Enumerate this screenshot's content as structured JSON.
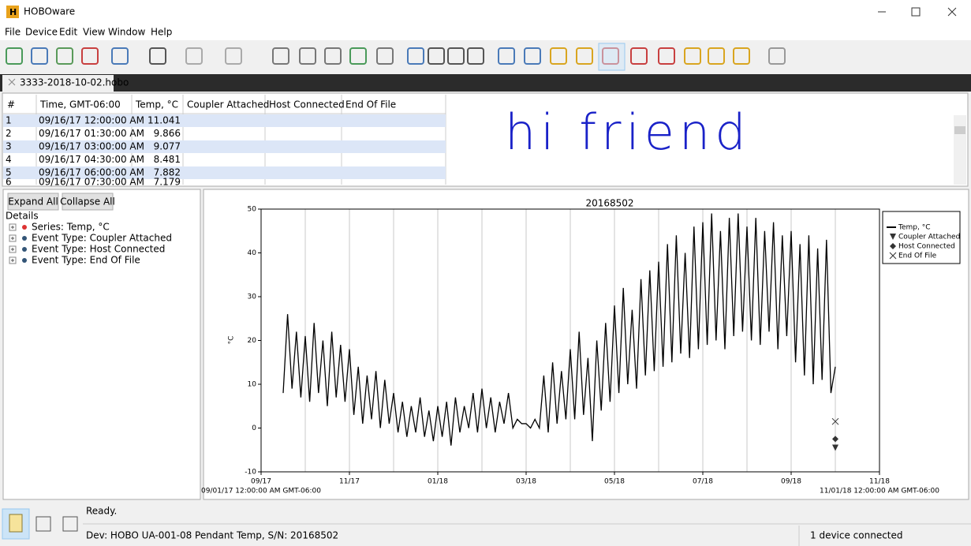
{
  "window": {
    "title": "HOBOware"
  },
  "menu": [
    "File",
    "Device",
    "Edit",
    "View",
    "Window",
    "Help"
  ],
  "tab": "3333-2018-10-02.hobo",
  "table": {
    "headers": [
      "#",
      "Time, GMT-06:00",
      "Temp, °C",
      "Coupler Attached",
      "Host Connected",
      "End Of File"
    ],
    "rows": [
      [
        1,
        "09/16/17 12:00:00 AM",
        11.041
      ],
      [
        2,
        "09/16/17 01:30:00 AM",
        9.866
      ],
      [
        3,
        "09/16/17 03:00:00 AM",
        9.077
      ],
      [
        4,
        "09/16/17 04:30:00 AM",
        8.481
      ],
      [
        5,
        "09/16/17 06:00:00 AM",
        7.882
      ],
      [
        6,
        "09/16/17 07:30:00 AM",
        7.179
      ]
    ]
  },
  "note": "hi friend",
  "panel": {
    "buttons": [
      "Expand All",
      "Collapse All"
    ],
    "tree_title": "Details",
    "tree": [
      "Series: Temp, °C",
      "Event Type: Coupler Attached",
      "Event Type: Host Connected",
      "Event Type: End Of File"
    ]
  },
  "status": {
    "message": "Ready.",
    "device": "Dev: HOBO UA-001-08 Pendant Temp, S/N: 20168502",
    "connected": "1 device connected"
  },
  "chart_data": {
    "type": "line",
    "title": "20168502",
    "y_label": "°C",
    "x_start_label": "09/01/17 12:00:00 AM GMT-06:00",
    "x_end_label": "11/01/18 12:00:00 AM GMT-06:00",
    "xlim": [
      0,
      14
    ],
    "xticks": [
      {
        "value": 0,
        "label": "09/17"
      },
      {
        "value": 2,
        "label": "11/17"
      },
      {
        "value": 4,
        "label": "01/18"
      },
      {
        "value": 6,
        "label": "03/18"
      },
      {
        "value": 8,
        "label": "05/18"
      },
      {
        "value": 10,
        "label": "07/18"
      },
      {
        "value": 12,
        "label": "09/18"
      },
      {
        "value": 14,
        "label": "11/18"
      }
    ],
    "xgrid": [
      1,
      3,
      5,
      7,
      9,
      11,
      13
    ],
    "ylim": [
      -10,
      50
    ],
    "yticks": [
      -10,
      0,
      10,
      20,
      30,
      40,
      50
    ],
    "legend": "right",
    "x": [
      0.5,
      0.6,
      0.7,
      0.8,
      0.9,
      1.0,
      1.1,
      1.2,
      1.3,
      1.4,
      1.5,
      1.6,
      1.7,
      1.8,
      1.9,
      2.0,
      2.1,
      2.2,
      2.3,
      2.4,
      2.5,
      2.6,
      2.7,
      2.8,
      2.9,
      3.0,
      3.1,
      3.2,
      3.3,
      3.4,
      3.5,
      3.6,
      3.7,
      3.8,
      3.9,
      4.0,
      4.1,
      4.2,
      4.3,
      4.4,
      4.5,
      4.6,
      4.7,
      4.8,
      4.9,
      5.0,
      5.1,
      5.2,
      5.3,
      5.4,
      5.5,
      5.6,
      5.7,
      5.8,
      5.9,
      6.0,
      6.1,
      6.2,
      6.3,
      6.4,
      6.5,
      6.6,
      6.7,
      6.8,
      6.9,
      7.0,
      7.1,
      7.2,
      7.3,
      7.4,
      7.5,
      7.6,
      7.7,
      7.8,
      7.9,
      8.0,
      8.1,
      8.2,
      8.3,
      8.4,
      8.5,
      8.6,
      8.7,
      8.8,
      8.9,
      9.0,
      9.1,
      9.2,
      9.3,
      9.4,
      9.5,
      9.6,
      9.7,
      9.8,
      9.9,
      10.0,
      10.1,
      10.2,
      10.3,
      10.4,
      10.5,
      10.6,
      10.7,
      10.8,
      10.9,
      11.0,
      11.1,
      11.2,
      11.3,
      11.4,
      11.5,
      11.6,
      11.7,
      11.8,
      11.9,
      12.0,
      12.1,
      12.2,
      12.3,
      12.4,
      12.5,
      12.6,
      12.7,
      12.8,
      12.9,
      13.0
    ],
    "series": [
      {
        "name": "Temp, °C",
        "marker": "line",
        "color": "#000000",
        "values": [
          8,
          26,
          9,
          22,
          7,
          21,
          6,
          24,
          8,
          20,
          5,
          22,
          7,
          19,
          6,
          18,
          3,
          14,
          1,
          12,
          2,
          13,
          0,
          11,
          1,
          8,
          -1,
          6,
          -2,
          5,
          -1,
          7,
          -2,
          4,
          -3,
          5,
          -2,
          6,
          -4,
          7,
          -1,
          5,
          0,
          8,
          -1,
          9,
          0,
          7,
          -1,
          6,
          1,
          8,
          0,
          2,
          1,
          1,
          0,
          2,
          0,
          12,
          -1,
          15,
          1,
          13,
          2,
          18,
          2,
          22,
          3,
          16,
          -3,
          20,
          4,
          24,
          6,
          28,
          8,
          32,
          10,
          27,
          9,
          34,
          12,
          36,
          13,
          38,
          14,
          42,
          15,
          44,
          17,
          40,
          16,
          46,
          18,
          47,
          19,
          49,
          20,
          45,
          18,
          48,
          21,
          49,
          22,
          46,
          20,
          48,
          19,
          45,
          22,
          47,
          18,
          44,
          21,
          45,
          15,
          42,
          12,
          44,
          10,
          41,
          11,
          43,
          8,
          14
        ]
      },
      {
        "name": "Coupler Attached",
        "marker": "triangle",
        "color": "#333333",
        "x": [
          13
        ],
        "values": [
          -4.5
        ]
      },
      {
        "name": "Host Connected",
        "marker": "diamond",
        "color": "#333333",
        "x": [
          13
        ],
        "values": [
          -2.5
        ]
      },
      {
        "name": "End Of File",
        "marker": "x",
        "color": "#333333",
        "x": [
          13
        ],
        "values": [
          1.5
        ]
      }
    ]
  }
}
